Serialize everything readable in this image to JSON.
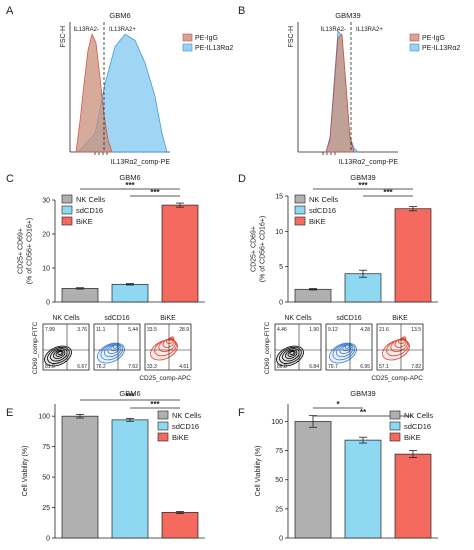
{
  "colors": {
    "pe_igg": "#c98f7a",
    "pe_il13": "#7fc8ef",
    "nk": "#b0b0b0",
    "sdcd16": "#8ed8f2",
    "bike": "#f46a5e",
    "flow_nk": "#000000",
    "flow_sd": "#3b7fd6",
    "flow_bike": "#e0452f"
  },
  "chart_data": [
    {
      "id": "A",
      "panel_label": "A",
      "type": "area",
      "title": "GBM6",
      "ylabel": "FSC-H",
      "xlabel": "IL13Rα2_comp-PE",
      "gate_labels": [
        "IL13RA2-",
        "IL13RA2+"
      ],
      "series": [
        {
          "name": "PE-IgG",
          "x": [
            0.06,
            0.1,
            0.14,
            0.18,
            0.22,
            0.26,
            0.3,
            0.34,
            0.38,
            0.42
          ],
          "values": [
            0,
            0.25,
            0.55,
            0.82,
            0.95,
            0.88,
            0.6,
            0.3,
            0.1,
            0
          ]
        },
        {
          "name": "PE-IL13Rα2",
          "x": [
            0.08,
            0.15,
            0.25,
            0.35,
            0.45,
            0.55,
            0.65,
            0.75,
            0.85,
            0.92,
            0.97
          ],
          "values": [
            0,
            0.06,
            0.15,
            0.55,
            0.85,
            0.95,
            0.9,
            0.72,
            0.45,
            0.15,
            0
          ]
        }
      ]
    },
    {
      "id": "B",
      "panel_label": "B",
      "type": "area",
      "title": "GBM39",
      "ylabel": "FSC-H",
      "xlabel": "IL13Rα2_comp-PE",
      "gate_labels": [
        "IL13RA2-",
        "IL13RA2+"
      ],
      "series": [
        {
          "name": "PE-IgG",
          "x": [
            0.28,
            0.32,
            0.36,
            0.4,
            0.44,
            0.48,
            0.52,
            0.56
          ],
          "values": [
            0,
            0.1,
            0.5,
            0.92,
            0.95,
            0.55,
            0.12,
            0
          ]
        },
        {
          "name": "PE-IL13Rα2",
          "x": [
            0.28,
            0.32,
            0.36,
            0.4,
            0.44,
            0.48,
            0.52,
            0.56,
            0.6
          ],
          "values": [
            0,
            0.12,
            0.55,
            0.98,
            0.93,
            0.5,
            0.12,
            0.03,
            0
          ]
        }
      ]
    },
    {
      "id": "C",
      "panel_label": "C",
      "type": "bar",
      "title": "GBM6",
      "ylabel": "CD25+ CD69+ (% of CD56+ CD16+)",
      "ylabel_lines": [
        "CD25+ CD69+",
        "(% of CD56+ CD16+)"
      ],
      "categories": [
        "NK Cells",
        "sdCD16",
        "BiKE"
      ],
      "values": [
        4,
        5.2,
        28.5
      ],
      "errors": [
        0.2,
        0.2,
        0.6
      ],
      "ylim": [
        0,
        30
      ],
      "yticks": [
        0,
        10,
        20,
        30
      ],
      "significance": [
        {
          "from": 0,
          "to": 2,
          "label": "***"
        },
        {
          "from": 1,
          "to": 2,
          "label": "***"
        }
      ],
      "legend": [
        "NK Cells",
        "sdCD16",
        "BiKE"
      ]
    },
    {
      "id": "D",
      "panel_label": "D",
      "type": "bar",
      "title": "GBM39",
      "ylabel": "CD25+ CD69+ (% of CD56+ CD16+)",
      "ylabel_lines": [
        "CD25+ CD69+",
        "(% of CD56+ CD16+)"
      ],
      "categories": [
        "NK Cells",
        "sdCD16",
        "BiKE"
      ],
      "values": [
        1.8,
        4.0,
        13.2
      ],
      "errors": [
        0.1,
        0.5,
        0.3
      ],
      "ylim": [
        0,
        15
      ],
      "yticks": [
        0,
        5,
        10,
        15
      ],
      "significance": [
        {
          "from": 0,
          "to": 2,
          "label": "***"
        },
        {
          "from": 1,
          "to": 2,
          "label": "***"
        }
      ],
      "legend": [
        "NK Cells",
        "sdCD16",
        "BiKE"
      ]
    },
    {
      "id": "C-flow",
      "type": "scatter",
      "ylabel": "CD69_comp-FITC",
      "xlabel": "CD25_comp-APC",
      "plots": [
        {
          "name": "NK Cells",
          "quadrants": [
            "7.99",
            "3.76",
            "81.6",
            "6.67"
          ]
        },
        {
          "name": "sdCD16",
          "quadrants": [
            "11.1",
            "5.44",
            "76.2",
            "7.62"
          ]
        },
        {
          "name": "BiKE",
          "quadrants": [
            "33.5",
            "28.9",
            "33.3",
            "4.61"
          ]
        }
      ]
    },
    {
      "id": "D-flow",
      "type": "scatter",
      "ylabel": "CD69_comp-FITC",
      "xlabel": "CD25_comp-APC",
      "plots": [
        {
          "name": "NK Cells",
          "quadrants": [
            "4.46",
            "1.90",
            "86.8",
            "6.84"
          ]
        },
        {
          "name": "sdCD16",
          "quadrants": [
            "9.12",
            "4.28",
            "79.7",
            "6.95"
          ]
        },
        {
          "name": "BiKE",
          "quadrants": [
            "21.6",
            "13.5",
            "57.1",
            "7.82"
          ]
        }
      ]
    },
    {
      "id": "E",
      "panel_label": "E",
      "type": "bar",
      "title": "GBM6",
      "ylabel": "Cell Viability (%)",
      "categories": [
        "NK Cells",
        "sdCD16",
        "BiKE"
      ],
      "values": [
        100,
        97,
        21
      ],
      "errors": [
        1.5,
        1.2,
        0.8
      ],
      "ylim": [
        0,
        110
      ],
      "yticks": [
        0,
        25,
        50,
        75,
        100
      ],
      "significance": [
        {
          "from": 0,
          "to": 2,
          "label": "***"
        },
        {
          "from": 1,
          "to": 2,
          "label": "***"
        }
      ],
      "legend": [
        "NK Cells",
        "sdCD16",
        "BiKE"
      ]
    },
    {
      "id": "F",
      "panel_label": "F",
      "type": "bar",
      "title": "GBM39",
      "ylabel": "Cell Viability (%)",
      "categories": [
        "NK Cells",
        "sdCD16",
        "BiKE"
      ],
      "values": [
        100,
        84,
        72
      ],
      "errors": [
        5,
        2.5,
        3
      ],
      "ylim": [
        0,
        115
      ],
      "yticks": [
        0,
        25,
        50,
        75,
        100
      ],
      "significance": [
        {
          "from": 0,
          "to": 1,
          "label": "*"
        },
        {
          "from": 0,
          "to": 2,
          "label": "**"
        }
      ],
      "legend": [
        "NK Cells",
        "sdCD16",
        "BiKE"
      ]
    }
  ]
}
